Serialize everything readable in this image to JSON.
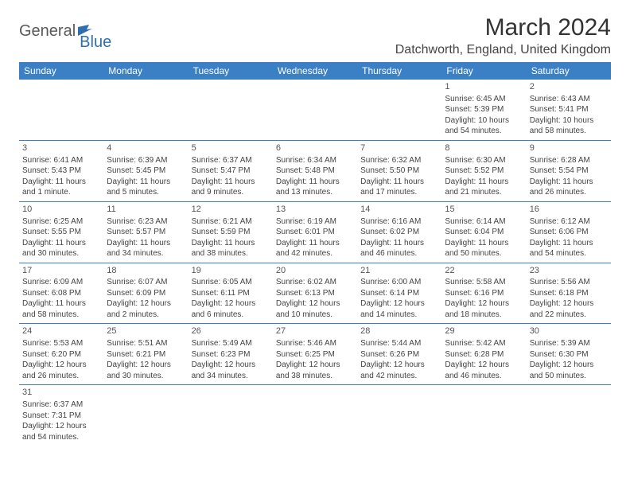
{
  "logo": {
    "part1": "General",
    "part2": "Blue"
  },
  "title": "March 2024",
  "location": "Datchworth, England, United Kingdom",
  "colors": {
    "header_bg": "#3b7fc4",
    "header_fg": "#ffffff",
    "border": "#3b7fc4",
    "logo_gray": "#5a5a5a",
    "logo_blue": "#2f6fb0"
  },
  "day_headers": [
    "Sunday",
    "Monday",
    "Tuesday",
    "Wednesday",
    "Thursday",
    "Friday",
    "Saturday"
  ],
  "weeks": [
    [
      null,
      null,
      null,
      null,
      null,
      {
        "n": "1",
        "sunrise": "Sunrise: 6:45 AM",
        "sunset": "Sunset: 5:39 PM",
        "daylight": "Daylight: 10 hours and 54 minutes."
      },
      {
        "n": "2",
        "sunrise": "Sunrise: 6:43 AM",
        "sunset": "Sunset: 5:41 PM",
        "daylight": "Daylight: 10 hours and 58 minutes."
      }
    ],
    [
      {
        "n": "3",
        "sunrise": "Sunrise: 6:41 AM",
        "sunset": "Sunset: 5:43 PM",
        "daylight": "Daylight: 11 hours and 1 minute."
      },
      {
        "n": "4",
        "sunrise": "Sunrise: 6:39 AM",
        "sunset": "Sunset: 5:45 PM",
        "daylight": "Daylight: 11 hours and 5 minutes."
      },
      {
        "n": "5",
        "sunrise": "Sunrise: 6:37 AM",
        "sunset": "Sunset: 5:47 PM",
        "daylight": "Daylight: 11 hours and 9 minutes."
      },
      {
        "n": "6",
        "sunrise": "Sunrise: 6:34 AM",
        "sunset": "Sunset: 5:48 PM",
        "daylight": "Daylight: 11 hours and 13 minutes."
      },
      {
        "n": "7",
        "sunrise": "Sunrise: 6:32 AM",
        "sunset": "Sunset: 5:50 PM",
        "daylight": "Daylight: 11 hours and 17 minutes."
      },
      {
        "n": "8",
        "sunrise": "Sunrise: 6:30 AM",
        "sunset": "Sunset: 5:52 PM",
        "daylight": "Daylight: 11 hours and 21 minutes."
      },
      {
        "n": "9",
        "sunrise": "Sunrise: 6:28 AM",
        "sunset": "Sunset: 5:54 PM",
        "daylight": "Daylight: 11 hours and 26 minutes."
      }
    ],
    [
      {
        "n": "10",
        "sunrise": "Sunrise: 6:25 AM",
        "sunset": "Sunset: 5:55 PM",
        "daylight": "Daylight: 11 hours and 30 minutes."
      },
      {
        "n": "11",
        "sunrise": "Sunrise: 6:23 AM",
        "sunset": "Sunset: 5:57 PM",
        "daylight": "Daylight: 11 hours and 34 minutes."
      },
      {
        "n": "12",
        "sunrise": "Sunrise: 6:21 AM",
        "sunset": "Sunset: 5:59 PM",
        "daylight": "Daylight: 11 hours and 38 minutes."
      },
      {
        "n": "13",
        "sunrise": "Sunrise: 6:19 AM",
        "sunset": "Sunset: 6:01 PM",
        "daylight": "Daylight: 11 hours and 42 minutes."
      },
      {
        "n": "14",
        "sunrise": "Sunrise: 6:16 AM",
        "sunset": "Sunset: 6:02 PM",
        "daylight": "Daylight: 11 hours and 46 minutes."
      },
      {
        "n": "15",
        "sunrise": "Sunrise: 6:14 AM",
        "sunset": "Sunset: 6:04 PM",
        "daylight": "Daylight: 11 hours and 50 minutes."
      },
      {
        "n": "16",
        "sunrise": "Sunrise: 6:12 AM",
        "sunset": "Sunset: 6:06 PM",
        "daylight": "Daylight: 11 hours and 54 minutes."
      }
    ],
    [
      {
        "n": "17",
        "sunrise": "Sunrise: 6:09 AM",
        "sunset": "Sunset: 6:08 PM",
        "daylight": "Daylight: 11 hours and 58 minutes."
      },
      {
        "n": "18",
        "sunrise": "Sunrise: 6:07 AM",
        "sunset": "Sunset: 6:09 PM",
        "daylight": "Daylight: 12 hours and 2 minutes."
      },
      {
        "n": "19",
        "sunrise": "Sunrise: 6:05 AM",
        "sunset": "Sunset: 6:11 PM",
        "daylight": "Daylight: 12 hours and 6 minutes."
      },
      {
        "n": "20",
        "sunrise": "Sunrise: 6:02 AM",
        "sunset": "Sunset: 6:13 PM",
        "daylight": "Daylight: 12 hours and 10 minutes."
      },
      {
        "n": "21",
        "sunrise": "Sunrise: 6:00 AM",
        "sunset": "Sunset: 6:14 PM",
        "daylight": "Daylight: 12 hours and 14 minutes."
      },
      {
        "n": "22",
        "sunrise": "Sunrise: 5:58 AM",
        "sunset": "Sunset: 6:16 PM",
        "daylight": "Daylight: 12 hours and 18 minutes."
      },
      {
        "n": "23",
        "sunrise": "Sunrise: 5:56 AM",
        "sunset": "Sunset: 6:18 PM",
        "daylight": "Daylight: 12 hours and 22 minutes."
      }
    ],
    [
      {
        "n": "24",
        "sunrise": "Sunrise: 5:53 AM",
        "sunset": "Sunset: 6:20 PM",
        "daylight": "Daylight: 12 hours and 26 minutes."
      },
      {
        "n": "25",
        "sunrise": "Sunrise: 5:51 AM",
        "sunset": "Sunset: 6:21 PM",
        "daylight": "Daylight: 12 hours and 30 minutes."
      },
      {
        "n": "26",
        "sunrise": "Sunrise: 5:49 AM",
        "sunset": "Sunset: 6:23 PM",
        "daylight": "Daylight: 12 hours and 34 minutes."
      },
      {
        "n": "27",
        "sunrise": "Sunrise: 5:46 AM",
        "sunset": "Sunset: 6:25 PM",
        "daylight": "Daylight: 12 hours and 38 minutes."
      },
      {
        "n": "28",
        "sunrise": "Sunrise: 5:44 AM",
        "sunset": "Sunset: 6:26 PM",
        "daylight": "Daylight: 12 hours and 42 minutes."
      },
      {
        "n": "29",
        "sunrise": "Sunrise: 5:42 AM",
        "sunset": "Sunset: 6:28 PM",
        "daylight": "Daylight: 12 hours and 46 minutes."
      },
      {
        "n": "30",
        "sunrise": "Sunrise: 5:39 AM",
        "sunset": "Sunset: 6:30 PM",
        "daylight": "Daylight: 12 hours and 50 minutes."
      }
    ],
    [
      {
        "n": "31",
        "sunrise": "Sunrise: 6:37 AM",
        "sunset": "Sunset: 7:31 PM",
        "daylight": "Daylight: 12 hours and 54 minutes."
      },
      null,
      null,
      null,
      null,
      null,
      null
    ]
  ]
}
